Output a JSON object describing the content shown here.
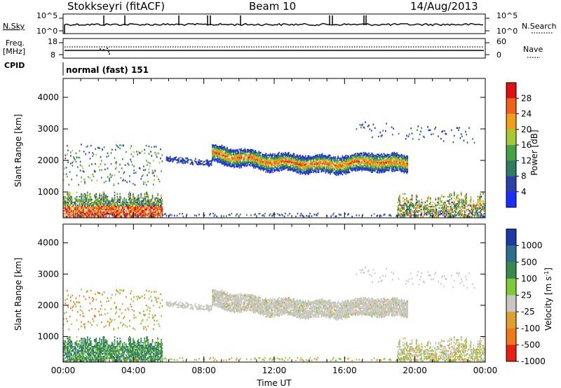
{
  "header": {
    "title": "Stokkseyri (fitACF)",
    "beam": "Beam 10",
    "date": "14/Aug/2013"
  },
  "status_panels": {
    "nsky_label": "N.Sky",
    "nsky_ticks": [
      "10^5",
      "10^0"
    ],
    "nsearch_label": "N.Search",
    "nsearch_ticks": [
      "10^5",
      "10^0"
    ],
    "freq_label_1": "Freq.",
    "freq_label_2": "[MHz]",
    "freq_ticks": [
      "18",
      "8"
    ],
    "nave_label": "Nave",
    "nave_ticks": [
      "60",
      "0"
    ],
    "cpid_label": "CPID",
    "cpid_value": "normal (fast) 151"
  },
  "chart_data": [
    {
      "type": "heatmap",
      "panel": "power",
      "ylabel": "Slant Range [km]",
      "xlabel": "",
      "yticks": [
        "1000",
        "2000",
        "3000",
        "4000"
      ],
      "ylim": [
        180,
        4600
      ],
      "colorbar_label": "Power [dB]",
      "colorbar_ticks": [
        "4",
        "8",
        "12",
        "16",
        "20",
        "24",
        "28"
      ],
      "colorbar_colors": [
        "#1a2fff",
        "#2e3fa8",
        "#2e7d5e",
        "#46a046",
        "#a8c832",
        "#f0a018",
        "#f06018",
        "#e01010"
      ],
      "colorbar_range": [
        0,
        32
      ],
      "main_echo_band": {
        "time_hours": [
          8.5,
          9.5,
          10.5,
          11.5,
          12.5,
          13.5,
          14.5,
          15.5,
          16.5,
          17.5,
          18.5
        ],
        "range_km": [
          2200,
          2100,
          2050,
          1950,
          1920,
          1880,
          1860,
          1850,
          1900,
          1950,
          1900
        ]
      }
    },
    {
      "type": "heatmap",
      "panel": "velocity",
      "ylabel": "Slant Range [km]",
      "xlabel": "Time UT",
      "yticks": [
        "1000",
        "2000",
        "3000",
        "4000"
      ],
      "xticks": [
        "00:00",
        "04:00",
        "08:00",
        "12:00",
        "16:00",
        "20:00",
        "00:00"
      ],
      "ylim": [
        180,
        4600
      ],
      "colorbar_label": "Velocity [m s^-1]",
      "colorbar_ticks": [
        "1000",
        "500",
        "100",
        "25",
        "-25",
        "-100",
        "-500",
        "-1000"
      ],
      "colorbar_colors": [
        "#1a3aa8",
        "#2e6e8e",
        "#3a8a4e",
        "#7ccc3a",
        "#c8c8c0",
        "#e0a030",
        "#f07818",
        "#e82010"
      ],
      "colorbar_range": [
        -1200,
        1200
      ]
    }
  ]
}
